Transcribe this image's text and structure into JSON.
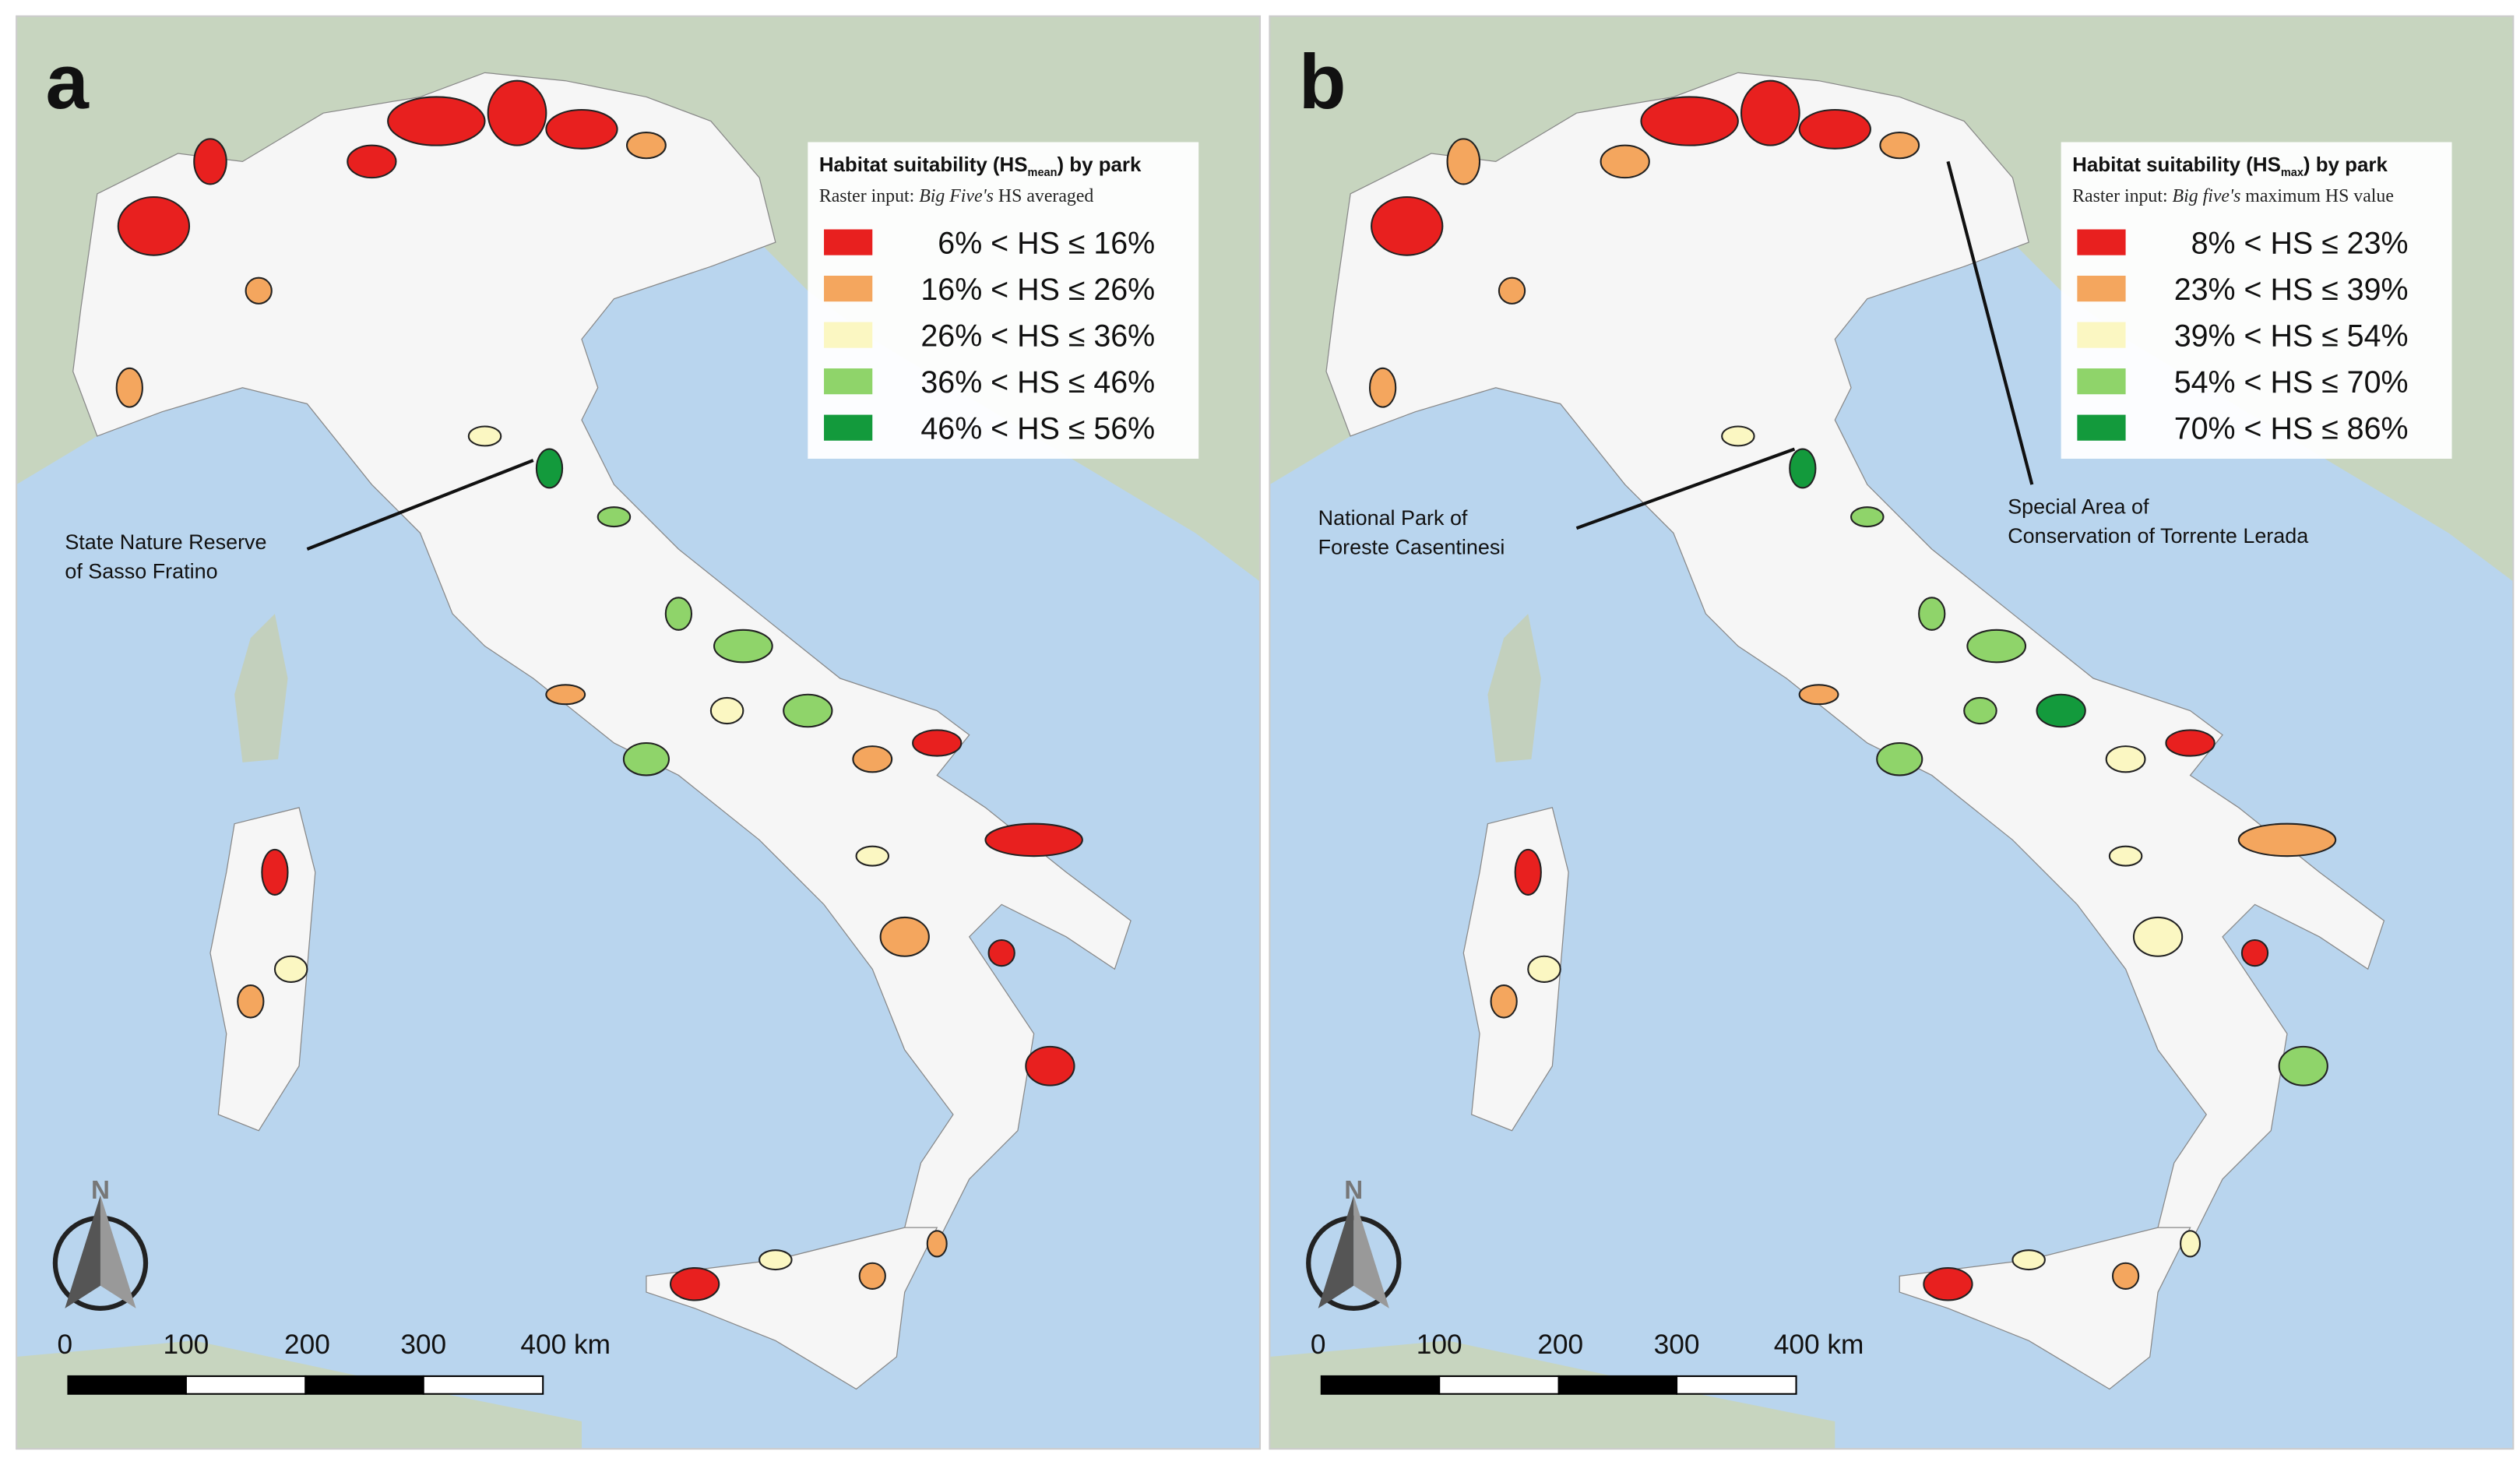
{
  "panels": [
    {
      "label": "a",
      "legend": {
        "title": {
          "text": "Habitat suitability (HS",
          "subscript": "mean",
          "end": ") by park"
        },
        "subtitle": {
          "text": "Raster input: ",
          "italic": "Big Five's",
          "end": " HS averaged"
        },
        "items": [
          {
            "label": "6% < HS ≤ 16%",
            "color": "#e8201f"
          },
          {
            "label": "16% < HS ≤ 26%",
            "color": "#f4a65e"
          },
          {
            "label": "26% < HS ≤ 36%",
            "color": "#fbf7c2"
          },
          {
            "label": "36% < HS ≤ 46%",
            "color": "#8fd46a"
          },
          {
            "label": "46% < HS ≤ 56%",
            "color": "#139a3c"
          }
        ]
      },
      "annotations": [
        {
          "lines": [
            "State Nature Reserve",
            "of Sasso Fratino"
          ]
        }
      ],
      "north": "N",
      "scale_labels": [
        "0",
        "100",
        "200",
        "300",
        "400 km"
      ]
    },
    {
      "label": "b",
      "legend": {
        "title": {
          "text": "Habitat suitability (HS",
          "subscript": "max",
          "end": ") by park"
        },
        "subtitle": {
          "text": "Raster input: ",
          "italic": "Big five's",
          "end": " maximum HS value"
        },
        "items": [
          {
            "label": "8% < HS ≤ 23%",
            "color": "#e8201f"
          },
          {
            "label": "23% < HS ≤ 39%",
            "color": "#f4a65e"
          },
          {
            "label": "39% < HS ≤ 54%",
            "color": "#fbf7c2"
          },
          {
            "label": "54% < HS ≤ 70%",
            "color": "#8fd46a"
          },
          {
            "label": "70% < HS ≤ 86%",
            "color": "#139a3c"
          }
        ]
      },
      "annotations": [
        {
          "lines": [
            "National Park of",
            "Foreste Casentinesi"
          ]
        },
        {
          "lines": [
            "Special Area of",
            "Conservation of Torrente Lerada"
          ]
        }
      ],
      "north": "N",
      "scale_labels": [
        "0",
        "100",
        "200",
        "300",
        "400 km"
      ]
    }
  ]
}
